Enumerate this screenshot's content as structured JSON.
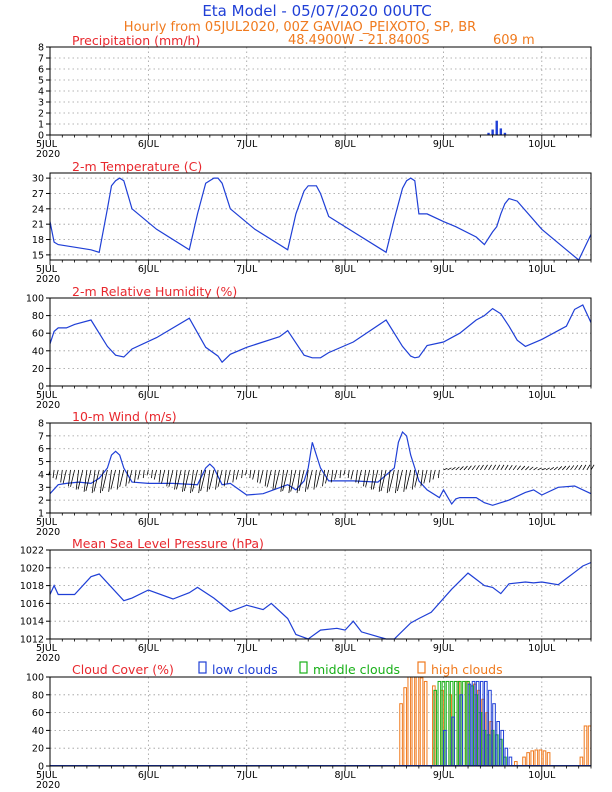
{
  "header": {
    "title": "Eta Model - 05/07/2020 00UTC",
    "subtitle": "Hourly from 05JUL2020, 00Z  GAVIAO_PEIXOTO, SP, BR",
    "coords": "48.4900W - 21.8400S",
    "elevation": "609  m"
  },
  "x_axis": {
    "day_labels": [
      "5JUL",
      "6JUL",
      "7JUL",
      "8JUL",
      "9JUL",
      "10JUL"
    ],
    "year_label": "2020",
    "hours_total": 132
  },
  "colors": {
    "series": "#1f3fd6",
    "low": "#1f3fd6",
    "middle": "#18b018",
    "high": "#f07a1e",
    "title": "#e8282e"
  },
  "chart_data": [
    {
      "type": "bar",
      "title": "Precipitation (mm/h)",
      "ylim": [
        0,
        8
      ],
      "yticks": [
        "0",
        "1",
        "2",
        "3",
        "4",
        "5",
        "6",
        "7",
        "8"
      ],
      "x": [
        107,
        108,
        109,
        110,
        111
      ],
      "values": [
        0.2,
        0.5,
        1.3,
        0.6,
        0.2
      ]
    },
    {
      "type": "line",
      "title": "2-m Temperature (C)",
      "ylim": [
        14,
        31
      ],
      "yticks": [
        "15",
        "18",
        "21",
        "24",
        "27",
        "30"
      ],
      "x": [
        0,
        1,
        2,
        6,
        10,
        12,
        14,
        15,
        16,
        17,
        18,
        20,
        26,
        34,
        36,
        38,
        40,
        41,
        42,
        44,
        50,
        58,
        60,
        62,
        63,
        64,
        65,
        66,
        68,
        74,
        82,
        84,
        86,
        87,
        88,
        89,
        90,
        92,
        96,
        99,
        104,
        106,
        108,
        109,
        110,
        111,
        112,
        114,
        120,
        126,
        129,
        132
      ],
      "values": [
        21.5,
        17.5,
        17,
        16.5,
        16,
        15.5,
        24,
        28.5,
        29.5,
        30,
        29.5,
        24,
        20,
        16,
        23,
        29,
        30,
        30,
        29,
        24,
        20,
        16,
        23,
        27.5,
        28.5,
        28.5,
        28.5,
        27,
        22.5,
        19.5,
        15.5,
        22,
        28,
        29.5,
        30,
        29.5,
        23,
        23,
        21.5,
        20.5,
        18.5,
        17,
        19.5,
        20.5,
        23,
        25,
        26,
        25.5,
        20,
        16,
        14,
        19
      ]
    },
    {
      "type": "line",
      "title": "2-m Relative Humidity (%)",
      "ylim": [
        0,
        100
      ],
      "yticks": [
        "0",
        "20",
        "40",
        "60",
        "80",
        "100"
      ],
      "x": [
        0,
        1,
        2,
        4,
        6,
        10,
        14,
        16,
        18,
        20,
        26,
        34,
        38,
        41,
        42,
        44,
        48,
        56,
        58,
        62,
        64,
        66,
        68,
        74,
        82,
        86,
        88,
        89,
        90,
        92,
        96,
        100,
        104,
        106,
        108,
        110,
        112,
        114,
        116,
        120,
        126,
        128,
        130,
        132
      ],
      "values": [
        48,
        62,
        66,
        66,
        70,
        75,
        45,
        35,
        33,
        42,
        55,
        77,
        44,
        34,
        27,
        36,
        44,
        56,
        63,
        35,
        32,
        32,
        38,
        50,
        75,
        45,
        34,
        32,
        33,
        46,
        50,
        60,
        75,
        80,
        88,
        82,
        68,
        52,
        45,
        53,
        68,
        87,
        92,
        72
      ]
    },
    {
      "type": "line",
      "title": "10-m Wind (m/s)",
      "ylim": [
        1,
        8
      ],
      "yticks": [
        "1",
        "2",
        "3",
        "4",
        "5",
        "6",
        "7",
        "8"
      ],
      "x": [
        0,
        2,
        4,
        7,
        10,
        12,
        14,
        15,
        16,
        17,
        18,
        20,
        24,
        30,
        36,
        38,
        39,
        40,
        42,
        44,
        48,
        52,
        58,
        60,
        62,
        63,
        64,
        66,
        68,
        70,
        74,
        80,
        84,
        85,
        86,
        87,
        88,
        89,
        90,
        92,
        95,
        96,
        98,
        99,
        100,
        104,
        106,
        108,
        112,
        116,
        118,
        120,
        124,
        128,
        132
      ],
      "values": [
        2.5,
        3.2,
        3.3,
        3.4,
        3.3,
        3.7,
        4.5,
        5.5,
        5.8,
        5.5,
        4.5,
        3.4,
        3.3,
        3.3,
        3.2,
        4.5,
        4.8,
        4.5,
        3.2,
        3.3,
        2.4,
        2.5,
        3.2,
        2.8,
        3.5,
        4.5,
        6.5,
        4.5,
        3.5,
        3.5,
        3.5,
        3.4,
        4.5,
        6.5,
        7.3,
        7.0,
        5.5,
        4.5,
        3.5,
        2.8,
        2.2,
        2.8,
        1.7,
        2.1,
        2.2,
        2.2,
        1.8,
        1.6,
        2.0,
        2.6,
        2.8,
        2.4,
        3.0,
        3.1,
        2.5
      ]
    },
    {
      "type": "line",
      "title": "Mean Sea Level Pressure (hPa)",
      "ylim": [
        1012,
        1022
      ],
      "yticks": [
        "1012",
        "1014",
        "1016",
        "1018",
        "1020",
        "1022"
      ],
      "x": [
        0,
        1,
        2,
        3,
        6,
        10,
        12,
        18,
        20,
        24,
        30,
        34,
        36,
        40,
        44,
        48,
        52,
        54,
        58,
        60,
        63,
        66,
        70,
        72,
        74,
        76,
        82,
        84,
        88,
        90,
        93,
        98,
        102,
        106,
        108,
        110,
        112,
        116,
        118,
        120,
        124,
        126,
        128,
        130,
        132
      ],
      "values": [
        1017,
        1018,
        1017,
        1017,
        1017,
        1019,
        1019.3,
        1016.3,
        1016.6,
        1017.5,
        1016.5,
        1017.2,
        1017.8,
        1016.6,
        1015.1,
        1015.8,
        1015.3,
        1016.0,
        1014.3,
        1012.5,
        1012.0,
        1013.0,
        1013.2,
        1013.0,
        1014.0,
        1012.8,
        1012.0,
        1012.0,
        1013.8,
        1014.3,
        1015.0,
        1017.6,
        1019.4,
        1018.0,
        1017.8,
        1017.1,
        1018.2,
        1018.4,
        1018.3,
        1018.4,
        1018.1,
        1018.8,
        1019.5,
        1020.2,
        1020.6
      ]
    },
    {
      "type": "bar",
      "title": "Cloud Cover (%)",
      "legend": {
        "low": "low clouds",
        "middle": "middle clouds",
        "high": "high clouds"
      },
      "ylim": [
        0,
        100
      ],
      "yticks": [
        "0",
        "20",
        "40",
        "60",
        "80",
        "100"
      ],
      "series": [
        {
          "name": "high clouds",
          "x": [
            86,
            87,
            88,
            89,
            90,
            91,
            92,
            94,
            96,
            98,
            100,
            102,
            104,
            105,
            106,
            107,
            108,
            114,
            116,
            117,
            118,
            119,
            120,
            121,
            122,
            130,
            131,
            132
          ],
          "values": [
            70,
            88,
            100,
            100,
            100,
            99,
            95,
            90,
            85,
            80,
            95,
            95,
            92,
            85,
            75,
            60,
            50,
            5,
            10,
            15,
            17,
            18,
            18,
            17,
            15,
            10,
            45,
            45
          ]
        },
        {
          "name": "middle clouds",
          "x": [
            94,
            95,
            96,
            97,
            98,
            99,
            100,
            101,
            102,
            103,
            104,
            105,
            106,
            107,
            108,
            109,
            110,
            111
          ],
          "values": [
            85,
            95,
            95,
            95,
            95,
            95,
            95,
            95,
            95,
            90,
            80,
            60,
            40,
            35,
            40,
            35,
            30,
            10
          ]
        },
        {
          "name": "low clouds",
          "x": [
            96,
            98,
            100,
            102,
            103,
            104,
            105,
            106,
            107,
            108,
            109,
            110,
            111,
            112
          ],
          "values": [
            40,
            55,
            80,
            92,
            95,
            95,
            95,
            95,
            85,
            70,
            50,
            40,
            20,
            10
          ]
        }
      ]
    }
  ]
}
